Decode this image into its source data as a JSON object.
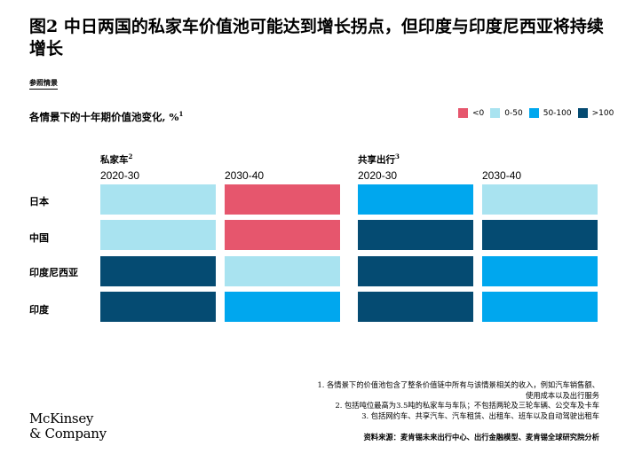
{
  "header": {
    "title": "图2 中日两国的私家车价值池可能达到增长拐点，但印度与印度尼西亚将持续增长",
    "scenario_tag": "参照情景"
  },
  "chart_data": {
    "type": "heatmap",
    "title": "各情景下的十年期价值池变化, %",
    "title_note": "1",
    "legend": [
      {
        "key": "neg",
        "label": "<0",
        "color": "#e6566d"
      },
      {
        "key": "low",
        "label": "0-50",
        "color": "#a9e3f0"
      },
      {
        "key": "mid",
        "label": "50-100",
        "color": "#00a7ee"
      },
      {
        "key": "high",
        "label": ">100",
        "color": "#054b72"
      }
    ],
    "groups": [
      {
        "label": "私家车",
        "note": "2",
        "periods": [
          "2020-30",
          "2030-40"
        ]
      },
      {
        "label": "共享出行",
        "note": "3",
        "periods": [
          "2020-30",
          "2030-40"
        ]
      }
    ],
    "rows": [
      {
        "label": "日本",
        "cells": [
          "low",
          "neg",
          "mid",
          "low"
        ]
      },
      {
        "label": "中国",
        "cells": [
          "low",
          "neg",
          "high",
          "high"
        ]
      },
      {
        "label": "印度尼西亚",
        "cells": [
          "high",
          "low",
          "high",
          "mid"
        ]
      },
      {
        "label": "印度",
        "cells": [
          "high",
          "mid",
          "high",
          "mid"
        ]
      }
    ]
  },
  "footnotes": [
    "1. 各情景下的价值池包含了整条价值链中所有与该情景相关的收入，例如汽车销售额、",
    "使用成本以及出行服务",
    "2. 包括吨位最高为3.5吨的私家车与车队；不包括两轮及三轮车辆、公交车及卡车",
    "3. 包括网约车、共享汽车、汽车租赁、出租车、班车以及自动驾驶出租车"
  ],
  "source": "资料来源：麦肯锡未来出行中心、出行金融模型、麦肯锡全球研究院分析",
  "logo": {
    "line1": "McKinsey",
    "line2": "& Company"
  }
}
